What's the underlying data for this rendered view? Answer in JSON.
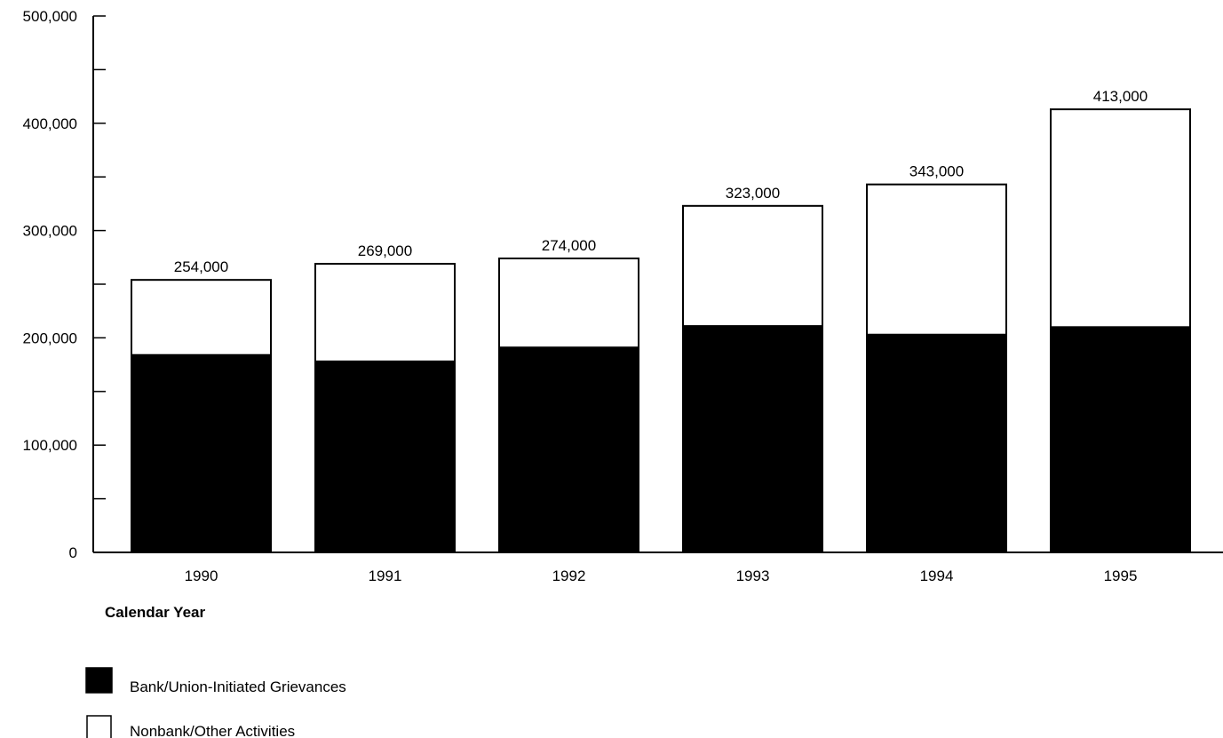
{
  "chart_data": {
    "type": "bar",
    "stacked": true,
    "categories": [
      "1990",
      "1991",
      "1992",
      "1993",
      "1994",
      "1995"
    ],
    "series": [
      {
        "name": "Bank/Union-Initiated Grievances",
        "values": [
          184000,
          178000,
          191000,
          211000,
          203000,
          210000
        ],
        "color": "#000000"
      },
      {
        "name": "Nonbank/Other Activities",
        "values": [
          70000,
          91000,
          83000,
          112000,
          140000,
          203000
        ],
        "color": "#ffffff"
      }
    ],
    "totals": [
      254000,
      269000,
      274000,
      323000,
      343000,
      413000
    ],
    "total_labels": [
      "254,000",
      "269,000",
      "274,000",
      "323,000",
      "343,000",
      "413,000"
    ],
    "title": "",
    "xlabel": "Calendar Year",
    "ylabel": "",
    "ylim": [
      0,
      500000
    ],
    "y_ticks": [
      0,
      100000,
      200000,
      300000,
      400000,
      500000
    ],
    "y_tick_labels": [
      "0",
      "100,000",
      "200,000",
      "300,000",
      "400,000",
      "500,000"
    ],
    "grid": false,
    "legend_position": "bottom-left"
  }
}
